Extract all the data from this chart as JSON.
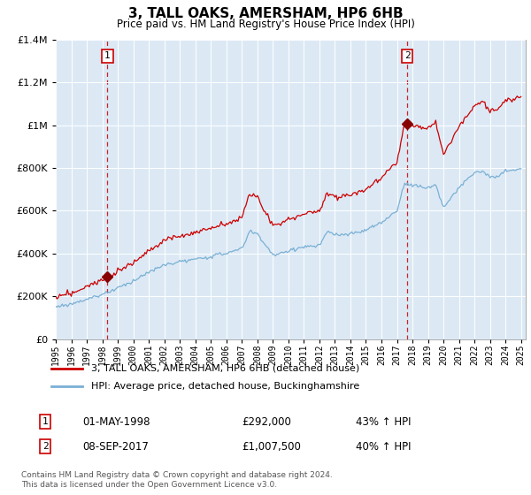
{
  "title": "3, TALL OAKS, AMERSHAM, HP6 6HB",
  "subtitle": "Price paid vs. HM Land Registry's House Price Index (HPI)",
  "legend_line1": "3, TALL OAKS, AMERSHAM, HP6 6HB (detached house)",
  "legend_line2": "HPI: Average price, detached house, Buckinghamshire",
  "annotation1_num": "1",
  "annotation1_date": "01-MAY-1998",
  "annotation1_price": "£292,000",
  "annotation1_hpi": "43% ↑ HPI",
  "annotation2_num": "2",
  "annotation2_date": "08-SEP-2017",
  "annotation2_price": "£1,007,500",
  "annotation2_hpi": "40% ↑ HPI",
  "footer": "Contains HM Land Registry data © Crown copyright and database right 2024.\nThis data is licensed under the Open Government Licence v3.0.",
  "sale1_year": 1998.33,
  "sale1_price": 292000,
  "sale2_year": 2017.67,
  "sale2_price": 1007500,
  "property_color": "#cc0000",
  "hpi_color": "#7ab0d4",
  "vline_color": "#cc0000",
  "dot_color": "#880000",
  "plot_bg_color": "#dce9f5",
  "ylim": [
    0,
    1400000
  ],
  "xlim_start": 1995,
  "xlim_end": 2025.3,
  "yticks": [
    0,
    200000,
    400000,
    600000,
    800000,
    1000000,
    1200000,
    1400000
  ]
}
